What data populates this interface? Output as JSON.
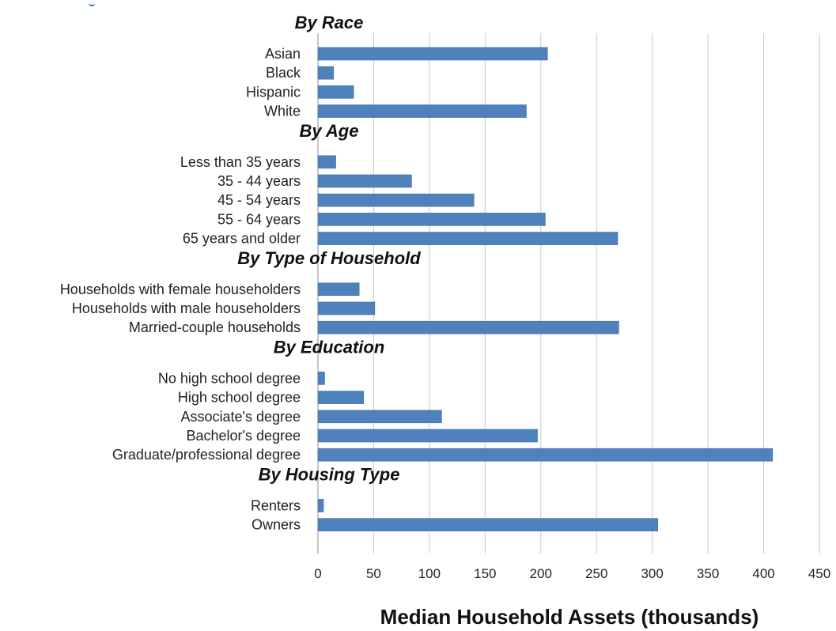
{
  "colors": {
    "bar": "#4f81bd",
    "bar_border": "#3d6ea5",
    "grid": "#c8c8c8",
    "corner_mark": "#1f6fd6"
  },
  "chart_data": {
    "type": "bar",
    "orientation": "horizontal",
    "title": "",
    "xlabel": "Median Household Assets (thousands)",
    "xlim": [
      0,
      450
    ],
    "xticks": [
      0,
      50,
      100,
      150,
      200,
      250,
      300,
      350,
      400,
      450
    ],
    "xtick_labels": [
      "0",
      "50",
      "100",
      "150",
      "200",
      "250",
      "300",
      "350",
      "400",
      "450"
    ],
    "grid": "vertical",
    "groups": [
      {
        "title": "By Race",
        "categories": [
          "Asian",
          "Black",
          "Hispanic",
          "White"
        ],
        "values": [
          206,
          14,
          32,
          187
        ]
      },
      {
        "title": "By Age",
        "categories": [
          "Less than 35 years",
          "35 - 44 years",
          "45 - 54 years",
          "55 - 64 years",
          "65 years and older"
        ],
        "values": [
          16,
          84,
          140,
          204,
          269
        ]
      },
      {
        "title": "By Type of Household",
        "categories": [
          "Households with female householders",
          "Households with male householders",
          "Married-couple households"
        ],
        "values": [
          37,
          51,
          270
        ]
      },
      {
        "title": "By Education",
        "categories": [
          "No high school degree",
          "High school degree",
          "Associate's degree",
          "Bachelor's degree",
          "Graduate/professional degree"
        ],
        "values": [
          6,
          41,
          111,
          197,
          408
        ]
      },
      {
        "title": "By Housing Type",
        "categories": [
          "Renters",
          "Owners"
        ],
        "values": [
          5,
          305
        ]
      }
    ]
  }
}
